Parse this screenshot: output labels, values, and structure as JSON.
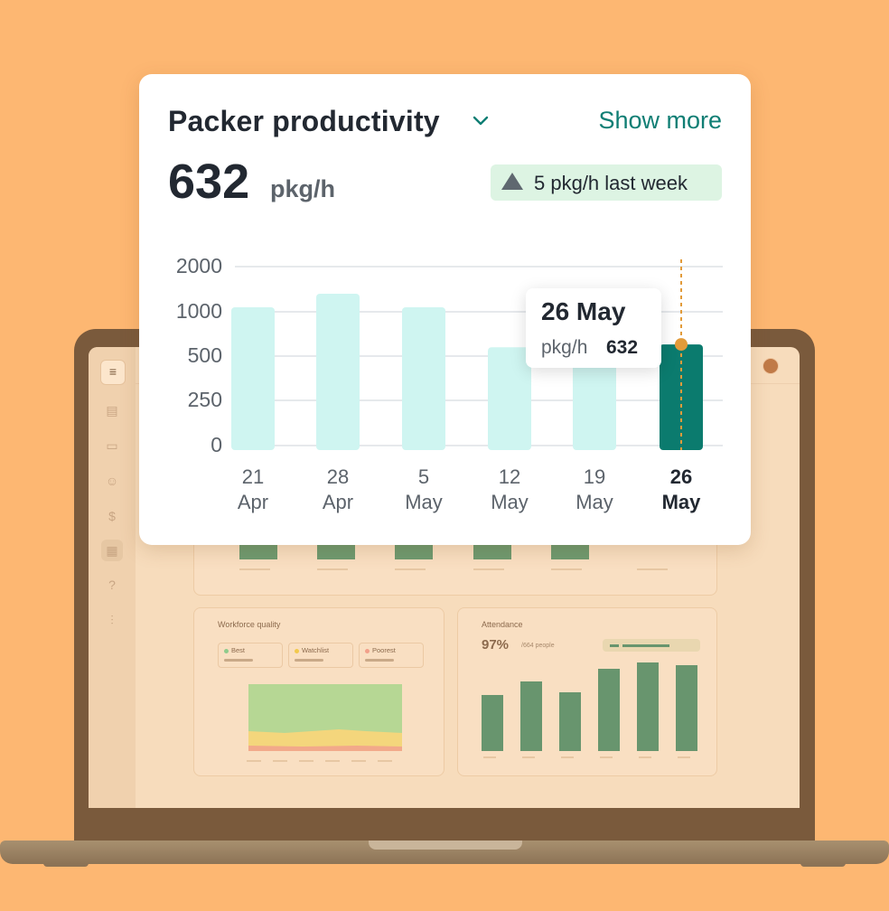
{
  "card": {
    "title": "Packer productivity",
    "show_more": "Show more",
    "value": "632",
    "unit": "pkg/h",
    "delta": "5 pkg/h last week",
    "tooltip": {
      "date": "26 May",
      "label": "pkg/h",
      "value": "632"
    }
  },
  "chart_data": {
    "type": "bar",
    "categories": [
      "21 Apr",
      "28 Apr",
      "5 May",
      "12 May",
      "19 May",
      "26 May"
    ],
    "x_lines": [
      [
        "21",
        "Apr"
      ],
      [
        "28",
        "Apr"
      ],
      [
        "5",
        "May"
      ],
      [
        "12",
        "May"
      ],
      [
        "19",
        "May"
      ],
      [
        "26",
        "May"
      ]
    ],
    "values": [
      1100,
      1400,
      1100,
      600,
      800,
      632
    ],
    "y_ticks": [
      "2000",
      "1000",
      "500",
      "250",
      "0"
    ],
    "selected_index": 5,
    "colors": {
      "bar": "#CFF5F1",
      "selected": "#0B7B6E",
      "marker": "#E29B3A"
    }
  },
  "background": {
    "workforce_quality": {
      "title": "Workforce quality",
      "legend": [
        "Best",
        "Watchlist",
        "Poorest"
      ]
    },
    "attendance": {
      "title": "Attendance",
      "percent": "97%",
      "people": "/664 people"
    }
  }
}
